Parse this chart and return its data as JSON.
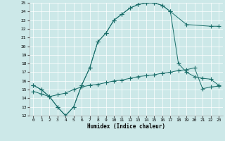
{
  "xlabel": "Humidex (Indice chaleur)",
  "bg_color": "#cce8e8",
  "line_color": "#1a6e6a",
  "grid_color": "#b0d0d0",
  "xlim": [
    -0.5,
    23.5
  ],
  "ylim": [
    12,
    25
  ],
  "xticks": [
    0,
    1,
    2,
    3,
    4,
    5,
    6,
    7,
    8,
    9,
    10,
    11,
    12,
    13,
    14,
    15,
    16,
    17,
    18,
    19,
    20,
    21,
    22,
    23
  ],
  "yticks": [
    12,
    13,
    14,
    15,
    16,
    17,
    18,
    19,
    20,
    21,
    22,
    23,
    24,
    25
  ],
  "line1_x": [
    0,
    1,
    2,
    3,
    4,
    5,
    6,
    7,
    8,
    9,
    10,
    11,
    12,
    13,
    14,
    15,
    16,
    17,
    19,
    22,
    23
  ],
  "line1_y": [
    15.5,
    15.0,
    14.2,
    13.0,
    12.0,
    13.0,
    15.5,
    17.5,
    20.5,
    21.5,
    23.0,
    23.7,
    24.4,
    24.8,
    25.0,
    25.0,
    24.7,
    24.0,
    22.5,
    22.3,
    22.3
  ],
  "line2_x": [
    0,
    1,
    2,
    3,
    4,
    5,
    6,
    7,
    8,
    9,
    10,
    11,
    12,
    13,
    14,
    15,
    16,
    17,
    18,
    19,
    20,
    21,
    22,
    23
  ],
  "line2_y": [
    15.5,
    15.0,
    14.2,
    13.0,
    12.0,
    13.0,
    15.5,
    17.5,
    20.5,
    21.5,
    23.0,
    23.7,
    24.4,
    24.8,
    25.0,
    25.0,
    24.7,
    24.0,
    18.0,
    17.0,
    16.5,
    16.3,
    16.2,
    15.5
  ],
  "line3_x": [
    0,
    1,
    2,
    3,
    4,
    5,
    6,
    7,
    8,
    9,
    10,
    11,
    12,
    13,
    14,
    15,
    16,
    17,
    18,
    19,
    20,
    21,
    22,
    23
  ],
  "line3_y": [
    14.8,
    14.5,
    14.2,
    14.4,
    14.6,
    15.0,
    15.3,
    15.5,
    15.6,
    15.8,
    16.0,
    16.1,
    16.3,
    16.5,
    16.6,
    16.7,
    16.9,
    17.0,
    17.2,
    17.3,
    17.5,
    15.1,
    15.3,
    15.4
  ]
}
